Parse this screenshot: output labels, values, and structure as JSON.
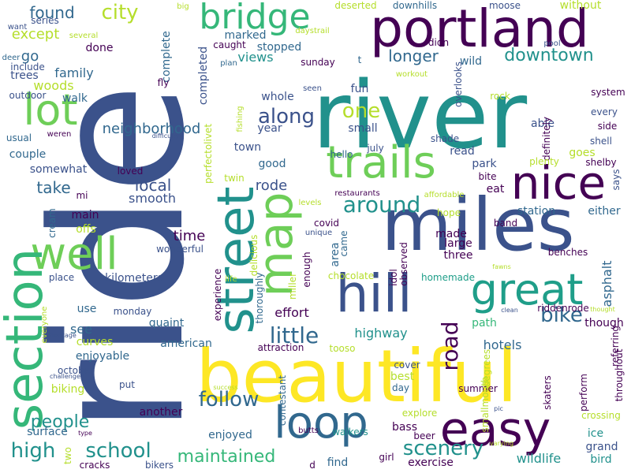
{
  "palette": {
    "dark_purple": "#440154",
    "indigo": "#3b528b",
    "blue": "#31688e",
    "teal": "#21918c",
    "sea_green": "#1f9e89",
    "green": "#35b779",
    "light_green": "#6ece58",
    "lime": "#b5de2b",
    "yellow": "#fde725"
  },
  "words": [
    {
      "text": "ride",
      "color": "#3b528b",
      "vertical": true
    },
    {
      "text": "river",
      "color": "#21918c",
      "vertical": false
    },
    {
      "text": "beautiful",
      "color": "#fde725",
      "vertical": false
    },
    {
      "text": "miles",
      "color": "#3b528b",
      "vertical": false
    },
    {
      "text": "portland",
      "color": "#440154",
      "vertical": false
    },
    {
      "text": "nice",
      "color": "#440154",
      "vertical": false
    },
    {
      "text": "easy",
      "color": "#440154",
      "vertical": false
    },
    {
      "text": "great",
      "color": "#1f9e89",
      "vertical": false
    },
    {
      "text": "loop",
      "color": "#31688e",
      "vertical": false
    },
    {
      "text": "trails",
      "color": "#6ece58",
      "vertical": false
    },
    {
      "text": "hill",
      "color": "#3b528b",
      "vertical": false
    },
    {
      "text": "lot",
      "color": "#6ece58",
      "vertical": false
    },
    {
      "text": "well",
      "color": "#6ece58",
      "vertical": false
    },
    {
      "text": "street",
      "color": "#21918c",
      "vertical": true
    },
    {
      "text": "section",
      "color": "#35b779",
      "vertical": true
    },
    {
      "text": "map",
      "color": "#6ece58",
      "vertical": true
    },
    {
      "text": "bridge",
      "color": "#35b779",
      "vertical": false
    },
    {
      "text": "downtown",
      "color": "#21918c",
      "vertical": false
    },
    {
      "text": "along",
      "color": "#3b528b",
      "vertical": false
    },
    {
      "text": "high",
      "color": "#21918c",
      "vertical": false
    },
    {
      "text": "school",
      "color": "#21918c",
      "vertical": false
    },
    {
      "text": "little",
      "color": "#31688e",
      "vertical": false
    },
    {
      "text": "city",
      "color": "#b5de2b",
      "vertical": false
    },
    {
      "text": "one",
      "color": "#b5de2b",
      "vertical": false
    },
    {
      "text": "bike",
      "color": "#31688e",
      "vertical": false
    },
    {
      "text": "around",
      "color": "#21918c",
      "vertical": false
    },
    {
      "text": "scenery",
      "color": "#21918c",
      "vertical": false
    },
    {
      "text": "follow",
      "color": "#31688e",
      "vertical": false
    },
    {
      "text": "people",
      "color": "#21918c",
      "vertical": false
    },
    {
      "text": "maintained",
      "color": "#35b779",
      "vertical": false
    },
    {
      "text": "road",
      "color": "#440154",
      "vertical": true
    },
    {
      "text": "longer",
      "color": "#31688e",
      "vertical": false
    },
    {
      "text": "found",
      "color": "#31688e",
      "vertical": false
    },
    {
      "text": "except",
      "color": "#b5de2b",
      "vertical": false
    },
    {
      "text": "go",
      "color": "#31688e",
      "vertical": false
    },
    {
      "text": "neighborhood",
      "color": "#31688e",
      "vertical": false
    },
    {
      "text": "take",
      "color": "#31688e",
      "vertical": false
    },
    {
      "text": "local",
      "color": "#3b528b",
      "vertical": false
    },
    {
      "text": "smooth",
      "color": "#3b528b",
      "vertical": false
    },
    {
      "text": "rode",
      "color": "#3b528b",
      "vertical": false
    },
    {
      "text": "time",
      "color": "#440154",
      "vertical": false
    },
    {
      "text": "views",
      "color": "#21918c",
      "vertical": false
    },
    {
      "text": "whole",
      "color": "#3b528b",
      "vertical": false
    },
    {
      "text": "year",
      "color": "#3b528b",
      "vertical": false
    },
    {
      "text": "town",
      "color": "#3b528b",
      "vertical": false
    },
    {
      "text": "good",
      "color": "#31688e",
      "vertical": false
    },
    {
      "text": "marked",
      "color": "#31688e",
      "vertical": false
    },
    {
      "text": "stopped",
      "color": "#31688e",
      "vertical": false
    },
    {
      "text": "sunday",
      "color": "#440154",
      "vertical": false
    },
    {
      "text": "wild",
      "color": "#31688e",
      "vertical": false
    },
    {
      "text": "fun",
      "color": "#3b528b",
      "vertical": false
    },
    {
      "text": "small",
      "color": "#3b528b",
      "vertical": false
    },
    {
      "text": "read",
      "color": "#3b528b",
      "vertical": false
    },
    {
      "text": "park",
      "color": "#3b528b",
      "vertical": false
    },
    {
      "text": "eat",
      "color": "#440154",
      "vertical": false
    },
    {
      "text": "station",
      "color": "#31688e",
      "vertical": false
    },
    {
      "text": "either",
      "color": "#31688e",
      "vertical": false
    },
    {
      "text": "made",
      "color": "#440154",
      "vertical": false
    },
    {
      "text": "large",
      "color": "#440154",
      "vertical": false
    },
    {
      "text": "three",
      "color": "#440154",
      "vertical": false
    },
    {
      "text": "hope",
      "color": "#b5de2b",
      "vertical": false
    },
    {
      "text": "band",
      "color": "#440154",
      "vertical": false
    },
    {
      "text": "benches",
      "color": "#440154",
      "vertical": false
    },
    {
      "text": "asphalt",
      "color": "#31688e",
      "vertical": true
    },
    {
      "text": "homemade",
      "color": "#1f9e89",
      "vertical": false
    },
    {
      "text": "chocolate",
      "color": "#b5de2b",
      "vertical": false
    },
    {
      "text": "effort",
      "color": "#440154",
      "vertical": false
    },
    {
      "text": "attraction",
      "color": "#440154",
      "vertical": false
    },
    {
      "text": "tooso",
      "color": "#b5de2b",
      "vertical": false
    },
    {
      "text": "highway",
      "color": "#21918c",
      "vertical": false
    },
    {
      "text": "cover",
      "color": "#3b528b",
      "vertical": false
    },
    {
      "text": "best",
      "color": "#b5de2b",
      "vertical": false
    },
    {
      "text": "day",
      "color": "#31688e",
      "vertical": false
    },
    {
      "text": "bass",
      "color": "#440154",
      "vertical": false
    },
    {
      "text": "beer",
      "color": "#440154",
      "vertical": false
    },
    {
      "text": "explore",
      "color": "#b5de2b",
      "vertical": false
    },
    {
      "text": "summer",
      "color": "#440154",
      "vertical": false
    },
    {
      "text": "path",
      "color": "#35b779",
      "vertical": false
    },
    {
      "text": "hotels",
      "color": "#31688e",
      "vertical": false
    },
    {
      "text": "though",
      "color": "#440154",
      "vertical": false
    },
    {
      "text": "riddenrode",
      "color": "#440154",
      "vertical": false
    },
    {
      "text": "skaters",
      "color": "#440154",
      "vertical": true
    },
    {
      "text": "perform",
      "color": "#440154",
      "vertical": true
    },
    {
      "text": "ice",
      "color": "#21918c",
      "vertical": false
    },
    {
      "text": "grand",
      "color": "#3b528b",
      "vertical": false
    },
    {
      "text": "wildlife",
      "color": "#21918c",
      "vertical": false
    },
    {
      "text": "bird",
      "color": "#21918c",
      "vertical": false
    },
    {
      "text": "crossing",
      "color": "#b5de2b",
      "vertical": false
    },
    {
      "text": "exercise",
      "color": "#440154",
      "vertical": false
    },
    {
      "text": "girl",
      "color": "#440154",
      "vertical": false
    },
    {
      "text": "find",
      "color": "#31688e",
      "vertical": false
    },
    {
      "text": "walkers",
      "color": "#21918c",
      "vertical": false
    },
    {
      "text": "butts",
      "color": "#440154",
      "vertical": false
    },
    {
      "text": "contestant",
      "color": "#31688e",
      "vertical": true
    },
    {
      "text": "another",
      "color": "#440154",
      "vertical": false
    },
    {
      "text": "enjoyed",
      "color": "#31688e",
      "vertical": false
    },
    {
      "text": "american",
      "color": "#31688e",
      "vertical": false
    },
    {
      "text": "quaint",
      "color": "#31688e",
      "vertical": false
    },
    {
      "text": "kilometers",
      "color": "#3b528b",
      "vertical": false
    },
    {
      "text": "wonderful",
      "color": "#3b528b",
      "vertical": false
    },
    {
      "text": "place",
      "color": "#3b528b",
      "vertical": false
    },
    {
      "text": "use",
      "color": "#31688e",
      "vertical": false
    },
    {
      "text": "monday",
      "color": "#3b528b",
      "vertical": false
    },
    {
      "text": "see",
      "color": "#31688e",
      "vertical": false
    },
    {
      "text": "curves",
      "color": "#b5de2b",
      "vertical": false
    },
    {
      "text": "enjoyable",
      "color": "#31688e",
      "vertical": false
    },
    {
      "text": "october",
      "color": "#3b528b",
      "vertical": false
    },
    {
      "text": "biking",
      "color": "#b5de2b",
      "vertical": false
    },
    {
      "text": "put",
      "color": "#3b528b",
      "vertical": false
    },
    {
      "text": "surface",
      "color": "#31688e",
      "vertical": false
    },
    {
      "text": "cracks",
      "color": "#440154",
      "vertical": false
    },
    {
      "text": "bikers",
      "color": "#3b528b",
      "vertical": false
    },
    {
      "text": "two",
      "color": "#b5de2b",
      "vertical": true
    },
    {
      "text": "main",
      "color": "#440154",
      "vertical": false
    },
    {
      "text": "offs",
      "color": "#b5de2b",
      "vertical": false
    },
    {
      "text": "cream",
      "color": "#31688e",
      "vertical": true
    },
    {
      "text": "mi",
      "color": "#440154",
      "vertical": false
    },
    {
      "text": "couple",
      "color": "#31688e",
      "vertical": false
    },
    {
      "text": "somewhat",
      "color": "#3b528b",
      "vertical": false
    },
    {
      "text": "usual",
      "color": "#31688e",
      "vertical": false
    },
    {
      "text": "weren",
      "color": "#440154",
      "vertical": false
    },
    {
      "text": "woods",
      "color": "#b5de2b",
      "vertical": false
    },
    {
      "text": "trees",
      "color": "#3b528b",
      "vertical": false
    },
    {
      "text": "outdoor",
      "color": "#3b528b",
      "vertical": false
    },
    {
      "text": "family",
      "color": "#31688e",
      "vertical": false
    },
    {
      "text": "walk",
      "color": "#31688e",
      "vertical": false
    },
    {
      "text": "done",
      "color": "#440154",
      "vertical": false
    },
    {
      "text": "complete",
      "color": "#31688e",
      "vertical": true
    },
    {
      "text": "completed",
      "color": "#3b528b",
      "vertical": true
    },
    {
      "text": "fly",
      "color": "#440154",
      "vertical": false
    },
    {
      "text": "caught",
      "color": "#440154",
      "vertical": false
    },
    {
      "text": "plan",
      "color": "#31688e",
      "vertical": false
    },
    {
      "text": "series",
      "color": "#3b528b",
      "vertical": false
    },
    {
      "text": "several",
      "color": "#b5de2b",
      "vertical": false
    },
    {
      "text": "deserted",
      "color": "#b5de2b",
      "vertical": false
    },
    {
      "text": "downhills",
      "color": "#31688e",
      "vertical": false
    },
    {
      "text": "daystrail",
      "color": "#b5de2b",
      "vertical": false
    },
    {
      "text": "didn",
      "color": "#440154",
      "vertical": false
    },
    {
      "text": "moose",
      "color": "#3b528b",
      "vertical": false
    },
    {
      "text": "without",
      "color": "#b5de2b",
      "vertical": false
    },
    {
      "text": "pool",
      "color": "#3b528b",
      "vertical": false
    },
    {
      "text": "big",
      "color": "#b5de2b",
      "vertical": false
    },
    {
      "text": "want",
      "color": "#3b528b",
      "vertical": false
    },
    {
      "text": "include",
      "color": "#3b528b",
      "vertical": false
    },
    {
      "text": "deer",
      "color": "#31688e",
      "vertical": false
    },
    {
      "text": "t",
      "color": "#31688e",
      "vertical": false
    },
    {
      "text": "workout",
      "color": "#b5de2b",
      "vertical": false
    },
    {
      "text": "overlooks",
      "color": "#3b528b",
      "vertical": true
    },
    {
      "text": "rock",
      "color": "#b5de2b",
      "vertical": false
    },
    {
      "text": "system",
      "color": "#440154",
      "vertical": false
    },
    {
      "text": "every",
      "color": "#3b528b",
      "vertical": false
    },
    {
      "text": "side",
      "color": "#440154",
      "vertical": false
    },
    {
      "text": "able",
      "color": "#3b528b",
      "vertical": false
    },
    {
      "text": "definitely",
      "color": "#440154",
      "vertical": true
    },
    {
      "text": "shade",
      "color": "#3b528b",
      "vertical": false
    },
    {
      "text": "shell",
      "color": "#3b528b",
      "vertical": false
    },
    {
      "text": "goes",
      "color": "#b5de2b",
      "vertical": false
    },
    {
      "text": "plenty",
      "color": "#b5de2b",
      "vertical": false
    },
    {
      "text": "shelby",
      "color": "#440154",
      "vertical": false
    },
    {
      "text": "says",
      "color": "#3b528b",
      "vertical": true
    },
    {
      "text": "bite",
      "color": "#440154",
      "vertical": false
    },
    {
      "text": "july",
      "color": "#3b528b",
      "vertical": false
    },
    {
      "text": "hello",
      "color": "#31688e",
      "vertical": false
    },
    {
      "text": "seen",
      "color": "#3b528b",
      "vertical": false
    },
    {
      "text": "restaurants",
      "color": "#440154",
      "vertical": false
    },
    {
      "text": "affordable",
      "color": "#b5de2b",
      "vertical": false
    },
    {
      "text": "levels",
      "color": "#b5de2b",
      "vertical": false
    },
    {
      "text": "covid",
      "color": "#440154",
      "vertical": false
    },
    {
      "text": "unique",
      "color": "#3b528b",
      "vertical": false
    },
    {
      "text": "came",
      "color": "#31688e",
      "vertical": true
    },
    {
      "text": "area",
      "color": "#31688e",
      "vertical": true
    },
    {
      "text": "enough",
      "color": "#440154",
      "vertical": true
    },
    {
      "text": "miller",
      "color": "#b5de2b",
      "vertical": true
    },
    {
      "text": "idol",
      "color": "#440154",
      "vertical": true
    },
    {
      "text": "observed",
      "color": "#440154",
      "vertical": true
    },
    {
      "text": "delicious",
      "color": "#b5de2b",
      "vertical": true
    },
    {
      "text": "thoroughly",
      "color": "#31688e",
      "vertical": true
    },
    {
      "text": "perfectolivet",
      "color": "#b5de2b",
      "vertical": true
    },
    {
      "text": "twin",
      "color": "#b5de2b",
      "vertical": false
    },
    {
      "text": "fishing",
      "color": "#b5de2b",
      "vertical": true
    },
    {
      "text": "difficulty",
      "color": "#3b528b",
      "vertical": false
    },
    {
      "text": "loved",
      "color": "#440154",
      "vertical": false
    },
    {
      "text": "life",
      "color": "#b5de2b",
      "vertical": false
    },
    {
      "text": "experience",
      "color": "#440154",
      "vertical": true
    },
    {
      "text": "heritage",
      "color": "#3b528b",
      "vertical": false
    },
    {
      "text": "everyone",
      "color": "#b5de2b",
      "vertical": true
    },
    {
      "text": "challenged",
      "color": "#3b528b",
      "vertical": false
    },
    {
      "text": "success",
      "color": "#b5de2b",
      "vertical": false
    },
    {
      "text": "type",
      "color": "#440154",
      "vertical": false
    },
    {
      "text": "d",
      "color": "#440154",
      "vertical": false
    },
    {
      "text": "fawns",
      "color": "#b5de2b",
      "vertical": false
    },
    {
      "text": "clean",
      "color": "#3b528b",
      "vertical": false
    },
    {
      "text": "thought",
      "color": "#b5de2b",
      "vertical": false
    },
    {
      "text": "referring",
      "color": "#440154",
      "vertical": true
    },
    {
      "text": "throughout",
      "color": "#440154",
      "vertical": true
    },
    {
      "text": "degrees",
      "color": "#b5de2b",
      "vertical": true
    },
    {
      "text": "smallmouth",
      "color": "#b5de2b",
      "vertical": true
    },
    {
      "text": "pic",
      "color": "#3b528b",
      "vertical": false
    },
    {
      "text": "varying",
      "color": "#b5de2b",
      "vertical": false
    }
  ]
}
